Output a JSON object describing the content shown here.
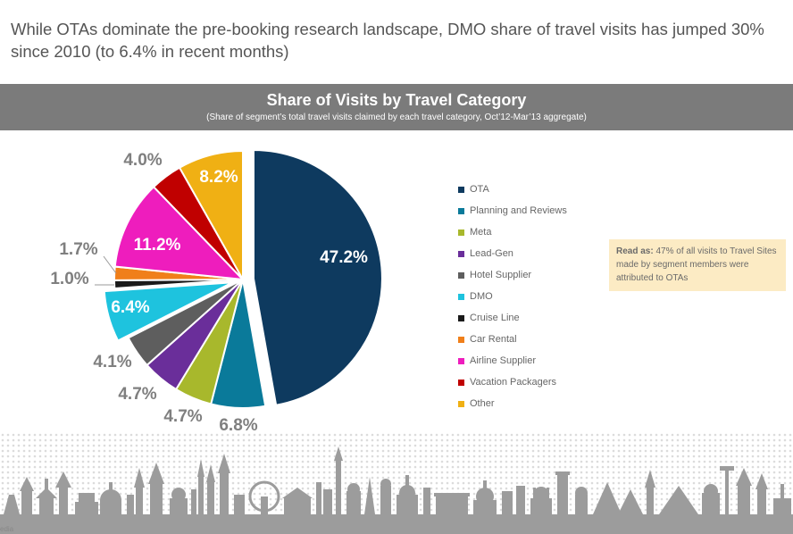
{
  "headline": "While OTAs dominate the pre-booking research landscape, DMO share of travel visits has jumped 30% since 2010 (to 6.4% in recent months)",
  "banner": {
    "title": "Share of Visits by Travel Category",
    "subtitle": "(Share of segment’s total travel visits claimed by each travel category, Oct’12-Mar’13 aggregate)"
  },
  "note": {
    "lead": "Read as:",
    "text": "47% of all visits to Travel Sites made by segment members were attributed to OTAs"
  },
  "corner_text": "edia",
  "chart_data": {
    "type": "pie",
    "title": "Share of Visits by Travel Category",
    "subtitle": "(Share of segment’s total travel visits claimed by each travel category, Oct’12-Mar’13 aggregate)",
    "legend_position": "right",
    "exploded": [
      "OTA",
      "DMO"
    ],
    "slices": [
      {
        "label": "OTA",
        "value": 47.2,
        "display": "47.2%",
        "color": "#0e3a5f"
      },
      {
        "label": "Planning and Reviews",
        "value": 6.8,
        "display": "6.8%",
        "color": "#0a7a9a"
      },
      {
        "label": "Meta",
        "value": 4.7,
        "display": "4.7%",
        "color": "#a8b82c"
      },
      {
        "label": "Lead-Gen",
        "value": 4.7,
        "display": "4.7%",
        "color": "#6a2e9a"
      },
      {
        "label": "Hotel Supplier",
        "value": 4.1,
        "display": "4.1%",
        "color": "#5e5e5e"
      },
      {
        "label": "DMO",
        "value": 6.4,
        "display": "6.4%",
        "color": "#1ec3de"
      },
      {
        "label": "Cruise Line",
        "value": 1.0,
        "display": "1.0%",
        "color": "#1a1a1a"
      },
      {
        "label": "Car Rental",
        "value": 1.7,
        "display": "1.7%",
        "color": "#f07f1a"
      },
      {
        "label": "Airline Supplier",
        "value": 11.2,
        "display": "11.2%",
        "color": "#ee1dbd"
      },
      {
        "label": "Vacation Packagers",
        "value": 4.0,
        "display": "4.0%",
        "color": "#c00000"
      },
      {
        "label": "Other",
        "value": 8.2,
        "display": "8.2%",
        "color": "#f0b014"
      }
    ]
  }
}
